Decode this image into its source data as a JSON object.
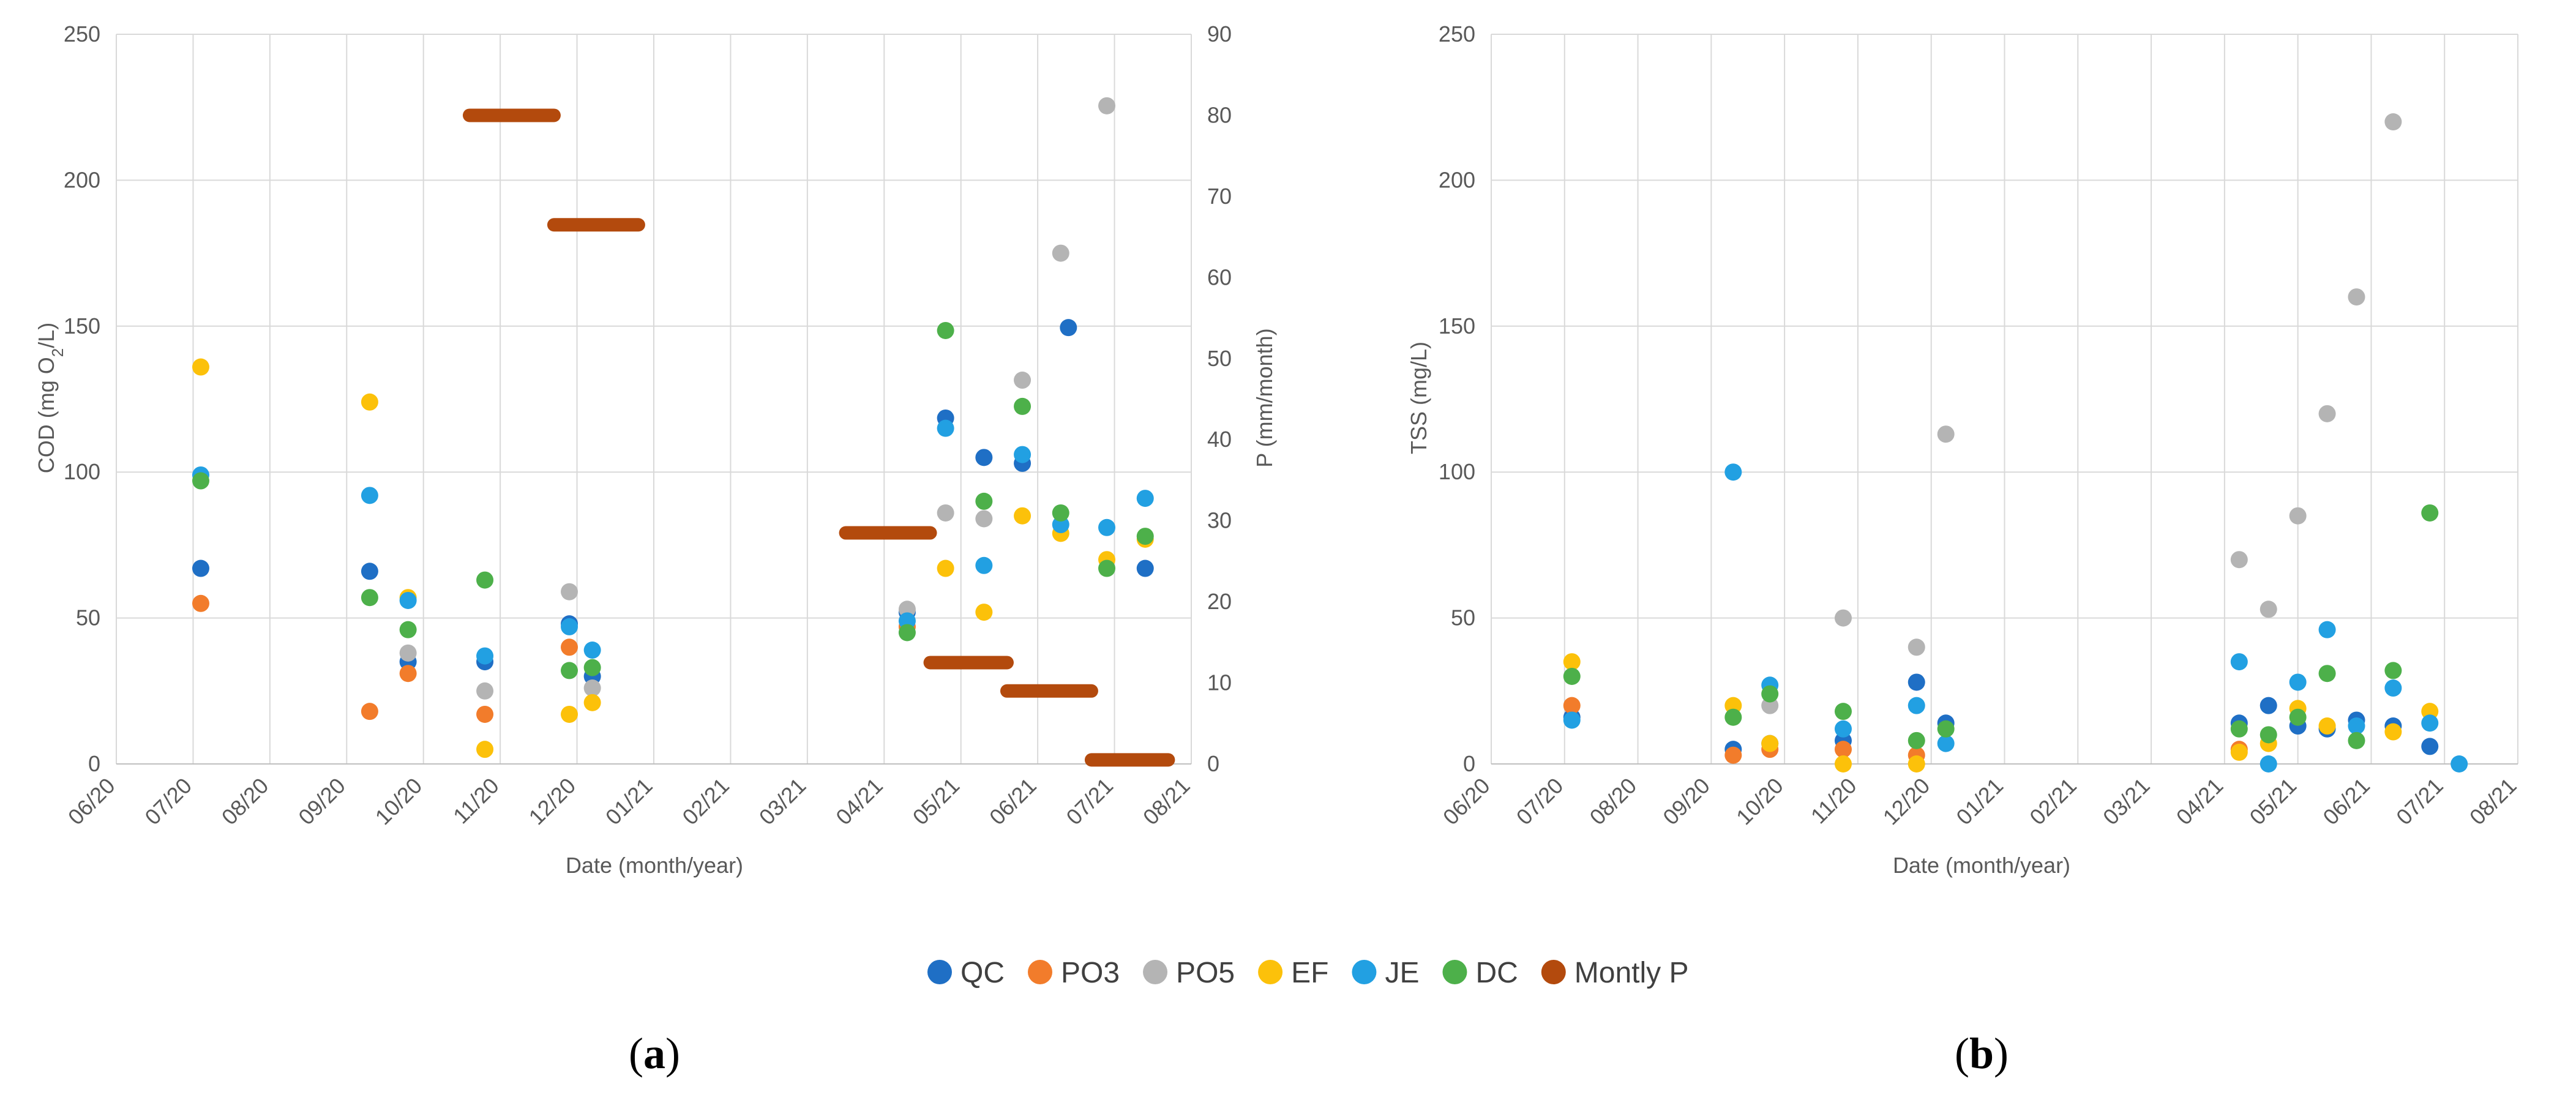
{
  "colors": {
    "QC": "#1f6fc5",
    "PO3": "#f27c2b",
    "PO5": "#b4b4b4",
    "EF": "#fcc10a",
    "JE": "#22a0e2",
    "DC": "#4db04a",
    "Montly P": "#b34a0d",
    "grid": "#d9d9d9",
    "axis": "#bfbfbf"
  },
  "legend": [
    "QC",
    "PO3",
    "PO5",
    "EF",
    "JE",
    "DC",
    "Montly P"
  ],
  "chart_data": [
    {
      "panel_open": "(",
      "panel_letter": "a",
      "panel_close": ")",
      "type": "scatter",
      "xlabel": "Date (month/year)",
      "ylabel_main": "COD (mg O",
      "ylabel_sub": "2",
      "ylabel_end": "/L)",
      "y2label": "P (mm/month)",
      "x_ticks": [
        "06/20",
        "07/20",
        "08/20",
        "09/20",
        "10/20",
        "11/20",
        "12/20",
        "01/21",
        "02/21",
        "03/21",
        "04/21",
        "05/21",
        "06/21",
        "07/21",
        "08/21"
      ],
      "ylim": [
        0,
        250
      ],
      "y_ticks": [
        "0",
        "50",
        "100",
        "150",
        "200",
        "250"
      ],
      "y2lim": [
        0,
        90
      ],
      "y2_ticks": [
        "0",
        "10",
        "20",
        "30",
        "40",
        "50",
        "60",
        "70",
        "80",
        "90"
      ],
      "series": [
        {
          "name": "QC",
          "points": [
            [
              1.1,
              67
            ],
            [
              3.3,
              66
            ],
            [
              3.8,
              35
            ],
            [
              4.8,
              35
            ],
            [
              5.9,
              48
            ],
            [
              6.2,
              30
            ],
            [
              10.3,
              52
            ],
            [
              10.8,
              118.5
            ],
            [
              11.3,
              105
            ],
            [
              11.8,
              103
            ],
            [
              12.4,
              149.5
            ],
            [
              13.4,
              67
            ]
          ]
        },
        {
          "name": "PO3",
          "points": [
            [
              1.1,
              55
            ],
            [
              3.3,
              18
            ],
            [
              3.8,
              31
            ],
            [
              4.8,
              17
            ],
            [
              5.9,
              40
            ],
            [
              10.3,
              47
            ]
          ]
        },
        {
          "name": "PO5",
          "points": [
            [
              3.8,
              38
            ],
            [
              4.8,
              25
            ],
            [
              5.9,
              59
            ],
            [
              6.2,
              26
            ],
            [
              10.3,
              53
            ],
            [
              10.8,
              86
            ],
            [
              11.3,
              84
            ],
            [
              11.8,
              131.5
            ],
            [
              12.3,
              175
            ],
            [
              12.9,
              225.5
            ]
          ]
        },
        {
          "name": "EF",
          "points": [
            [
              1.1,
              136
            ],
            [
              3.3,
              124
            ],
            [
              3.8,
              57
            ],
            [
              4.8,
              5
            ],
            [
              5.9,
              17
            ],
            [
              6.2,
              21
            ],
            [
              10.8,
              67
            ],
            [
              11.3,
              52
            ],
            [
              11.8,
              85
            ],
            [
              12.3,
              79
            ],
            [
              12.9,
              70
            ],
            [
              13.4,
              77
            ]
          ]
        },
        {
          "name": "JE",
          "points": [
            [
              1.1,
              99
            ],
            [
              3.3,
              92
            ],
            [
              3.8,
              56
            ],
            [
              4.8,
              37
            ],
            [
              5.9,
              47
            ],
            [
              6.2,
              39
            ],
            [
              10.3,
              49
            ],
            [
              10.8,
              115
            ],
            [
              11.3,
              68
            ],
            [
              11.8,
              106
            ],
            [
              12.3,
              82
            ],
            [
              12.9,
              81
            ],
            [
              13.4,
              91
            ]
          ]
        },
        {
          "name": "DC",
          "points": [
            [
              1.1,
              97
            ],
            [
              3.3,
              57
            ],
            [
              3.8,
              46
            ],
            [
              4.8,
              63
            ],
            [
              5.9,
              32
            ],
            [
              6.2,
              33
            ],
            [
              10.3,
              45
            ],
            [
              10.8,
              148.5
            ],
            [
              11.3,
              90
            ],
            [
              11.8,
              122.5
            ],
            [
              12.3,
              86
            ],
            [
              12.9,
              67
            ],
            [
              13.4,
              78
            ]
          ]
        }
      ],
      "monthly_p": {
        "name": "Montly P",
        "values": [
          [
            4.6,
            5.7,
            80
          ],
          [
            5.7,
            6.8,
            66.5
          ],
          [
            9.5,
            10.6,
            28.5
          ],
          [
            10.6,
            11.6,
            12.5
          ],
          [
            11.6,
            12.7,
            9
          ],
          [
            12.7,
            13.7,
            0.5
          ]
        ]
      }
    },
    {
      "panel_open": "(",
      "panel_letter": "b",
      "panel_close": ")",
      "type": "scatter",
      "xlabel": "Date (month/year)",
      "ylabel": "TSS (mg/L)",
      "x_ticks": [
        "06/20",
        "07/20",
        "08/20",
        "09/20",
        "10/20",
        "11/20",
        "12/20",
        "01/21",
        "02/21",
        "03/21",
        "04/21",
        "05/21",
        "06/21",
        "07/21",
        "08/21"
      ],
      "ylim": [
        0,
        250
      ],
      "y_ticks": [
        "0",
        "50",
        "100",
        "150",
        "200",
        "250"
      ],
      "series": [
        {
          "name": "QC",
          "points": [
            [
              1.1,
              16
            ],
            [
              3.3,
              5
            ],
            [
              3.8,
              7
            ],
            [
              4.8,
              8
            ],
            [
              5.8,
              28
            ],
            [
              6.2,
              14
            ],
            [
              10.2,
              14
            ],
            [
              10.6,
              20
            ],
            [
              11.0,
              13
            ],
            [
              11.4,
              12
            ],
            [
              11.8,
              15
            ],
            [
              12.3,
              13
            ],
            [
              12.8,
              6
            ]
          ]
        },
        {
          "name": "PO3",
          "points": [
            [
              1.1,
              20
            ],
            [
              3.3,
              3
            ],
            [
              3.8,
              5
            ],
            [
              4.8,
              5
            ],
            [
              5.8,
              3
            ],
            [
              10.2,
              5
            ]
          ]
        },
        {
          "name": "PO5",
          "points": [
            [
              3.8,
              20
            ],
            [
              4.8,
              50
            ],
            [
              5.8,
              40
            ],
            [
              6.2,
              113
            ],
            [
              10.2,
              70
            ],
            [
              10.6,
              53
            ],
            [
              11.0,
              85
            ],
            [
              11.4,
              120
            ],
            [
              11.8,
              160
            ],
            [
              12.3,
              220
            ]
          ]
        },
        {
          "name": "EF",
          "points": [
            [
              1.1,
              35
            ],
            [
              3.3,
              20
            ],
            [
              3.8,
              7
            ],
            [
              4.8,
              0
            ],
            [
              5.8,
              0
            ],
            [
              10.2,
              4
            ],
            [
              10.6,
              7
            ],
            [
              11.0,
              19
            ],
            [
              11.4,
              13
            ],
            [
              12.3,
              11
            ],
            [
              12.8,
              18
            ]
          ]
        },
        {
          "name": "JE",
          "points": [
            [
              1.1,
              15
            ],
            [
              3.3,
              100
            ],
            [
              3.8,
              27
            ],
            [
              4.8,
              12
            ],
            [
              5.8,
              20
            ],
            [
              6.2,
              7
            ],
            [
              10.2,
              35
            ],
            [
              10.6,
              0
            ],
            [
              11.0,
              28
            ],
            [
              11.4,
              46
            ],
            [
              11.8,
              13
            ],
            [
              12.3,
              26
            ],
            [
              12.8,
              14
            ],
            [
              13.2,
              0
            ]
          ]
        },
        {
          "name": "DC",
          "points": [
            [
              1.1,
              30
            ],
            [
              3.3,
              16
            ],
            [
              3.8,
              24
            ],
            [
              4.8,
              18
            ],
            [
              5.8,
              8
            ],
            [
              6.2,
              12
            ],
            [
              10.2,
              12
            ],
            [
              10.6,
              10
            ],
            [
              11.0,
              16
            ],
            [
              11.4,
              31
            ],
            [
              11.8,
              8
            ],
            [
              12.3,
              32
            ],
            [
              12.8,
              86
            ]
          ]
        }
      ]
    }
  ]
}
